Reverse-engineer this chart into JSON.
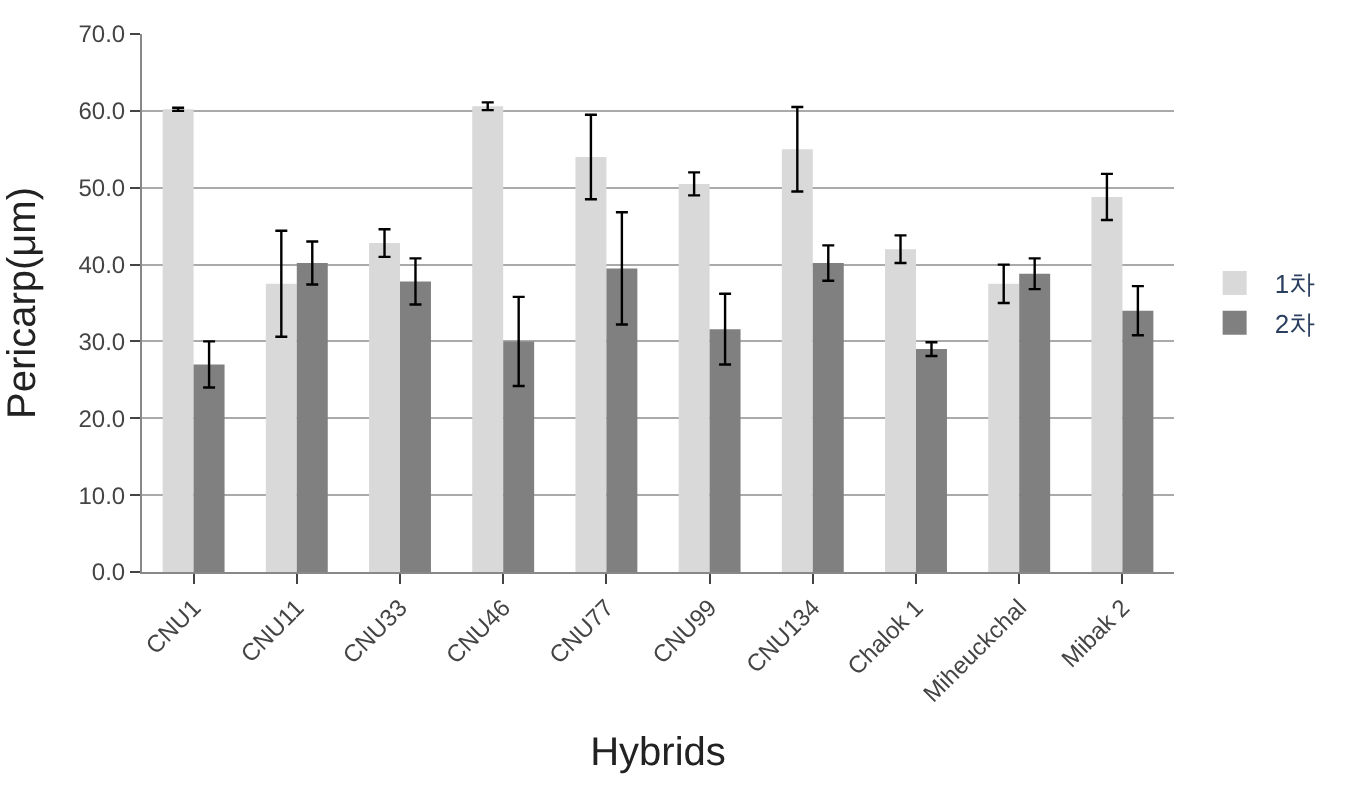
{
  "chart_data": {
    "type": "bar",
    "xlabel": "Hybrids",
    "ylabel": "Pericarp(μm)",
    "categories": [
      "CNU1",
      "CNU11",
      "CNU33",
      "CNU46",
      "CNU77",
      "CNU99",
      "CNU134",
      "Chalok 1",
      "Miheuckchal",
      "Mibak 2"
    ],
    "series": [
      {
        "name": "1차",
        "color": "#d9d9d9",
        "values": [
          60.2,
          37.5,
          42.8,
          60.6,
          54.0,
          50.5,
          55.0,
          42.0,
          37.5,
          48.8
        ],
        "errors": [
          0.2,
          6.9,
          1.8,
          0.5,
          5.5,
          1.5,
          5.5,
          1.8,
          2.5,
          3.0
        ]
      },
      {
        "name": "2차",
        "color": "#808080",
        "values": [
          27.0,
          40.2,
          37.8,
          30.0,
          39.5,
          31.6,
          40.2,
          29.0,
          38.8,
          34.0
        ],
        "errors": [
          3.0,
          2.8,
          3.0,
          5.8,
          7.3,
          4.6,
          2.3,
          0.9,
          2.0,
          3.2
        ]
      }
    ],
    "ylim": [
      0,
      70
    ],
    "yticks": [
      {
        "value": 0,
        "label": "0.0"
      },
      {
        "value": 10,
        "label": "10.0"
      },
      {
        "value": 20,
        "label": "20.0"
      },
      {
        "value": 30,
        "label": "30.0"
      },
      {
        "value": 40,
        "label": "40.0"
      },
      {
        "value": 50,
        "label": "50.0"
      },
      {
        "value": 60,
        "label": "60.0"
      },
      {
        "value": 70,
        "label": "70.0"
      }
    ],
    "grid": "y",
    "legend": "right"
  }
}
